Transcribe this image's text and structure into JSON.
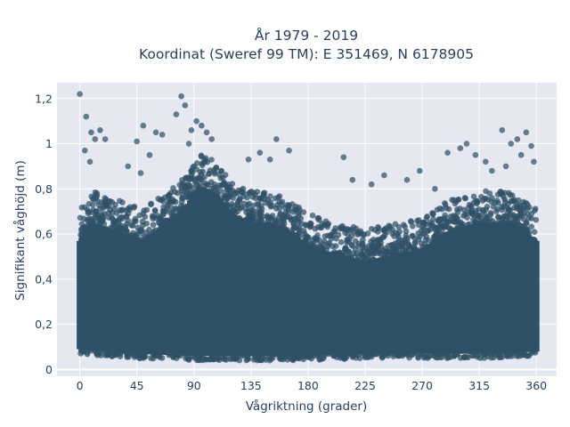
{
  "chart_data": {
    "type": "scatter",
    "title": "År 1979 - 2019",
    "subtitle": "Koordinat (Sweref 99 TM): E 351469, N 6178905",
    "xlabel": "Vågriktning (grader)",
    "ylabel": "Signifikant våghöjd (m)",
    "xlim": [
      -18,
      376
    ],
    "ylim": [
      -0.03,
      1.27
    ],
    "x_ticks": [
      0,
      45,
      90,
      135,
      180,
      225,
      270,
      315,
      360
    ],
    "x_tick_labels": [
      "0",
      "45",
      "90",
      "135",
      "180",
      "225",
      "270",
      "315",
      "360"
    ],
    "y_ticks": [
      0,
      0.2,
      0.4,
      0.6,
      0.8,
      1.0,
      1.2
    ],
    "y_tick_labels": [
      "0",
      "0,2",
      "0,4",
      "0,6",
      "0,8",
      "1",
      "1,2"
    ],
    "grid": true,
    "marker_color": "#2f5166",
    "background_color": "#e5e8f1",
    "series": [
      {
        "dense_band": {
          "x_range": [
            0,
            360
          ],
          "y_lower_bound": [
            [
              0,
              0.07
            ],
            [
              20,
              0.06
            ],
            [
              45,
              0.05
            ],
            [
              90,
              0.04
            ],
            [
              135,
              0.04
            ],
            [
              180,
              0.04
            ],
            [
              225,
              0.05
            ],
            [
              270,
              0.05
            ],
            [
              315,
              0.05
            ],
            [
              360,
              0.06
            ]
          ],
          "y_upper_bound": [
            [
              0,
              0.62
            ],
            [
              10,
              0.7
            ],
            [
              30,
              0.66
            ],
            [
              50,
              0.62
            ],
            [
              70,
              0.7
            ],
            [
              85,
              0.78
            ],
            [
              95,
              0.86
            ],
            [
              105,
              0.84
            ],
            [
              120,
              0.74
            ],
            [
              135,
              0.7
            ],
            [
              150,
              0.7
            ],
            [
              165,
              0.66
            ],
            [
              180,
              0.6
            ],
            [
              200,
              0.56
            ],
            [
              225,
              0.53
            ],
            [
              250,
              0.56
            ],
            [
              270,
              0.58
            ],
            [
              290,
              0.66
            ],
            [
              315,
              0.7
            ],
            [
              340,
              0.7
            ],
            [
              360,
              0.62
            ]
          ]
        },
        "points": [
          [
            0,
            1.22
          ],
          [
            5,
            1.12
          ],
          [
            9,
            1.05
          ],
          [
            12,
            1.02
          ],
          [
            16,
            1.06
          ],
          [
            20,
            1.02
          ],
          [
            4,
            0.97
          ],
          [
            8,
            0.92
          ],
          [
            45,
            1.01
          ],
          [
            50,
            1.08
          ],
          [
            55,
            0.95
          ],
          [
            60,
            1.05
          ],
          [
            65,
            1.04
          ],
          [
            38,
            0.9
          ],
          [
            48,
            0.87
          ],
          [
            80,
            1.21
          ],
          [
            83,
            1.17
          ],
          [
            76,
            1.13
          ],
          [
            88,
            1.06
          ],
          [
            92,
            1.1
          ],
          [
            96,
            1.08
          ],
          [
            100,
            1.05
          ],
          [
            104,
            1.02
          ],
          [
            86,
            1.0
          ],
          [
            155,
            1.02
          ],
          [
            165,
            0.97
          ],
          [
            150,
            0.93
          ],
          [
            142,
            0.96
          ],
          [
            133,
            0.93
          ],
          [
            208,
            0.94
          ],
          [
            215,
            0.84
          ],
          [
            230,
            0.82
          ],
          [
            240,
            0.86
          ],
          [
            258,
            0.84
          ],
          [
            268,
            0.88
          ],
          [
            280,
            0.8
          ],
          [
            290,
            0.96
          ],
          [
            300,
            0.98
          ],
          [
            305,
            1.0
          ],
          [
            312,
            0.95
          ],
          [
            320,
            0.92
          ],
          [
            325,
            0.88
          ],
          [
            333,
            1.06
          ],
          [
            340,
            1.0
          ],
          [
            345,
            1.02
          ],
          [
            352,
            1.05
          ],
          [
            356,
            0.99
          ],
          [
            358,
            0.92
          ],
          [
            348,
            0.95
          ],
          [
            336,
            0.9
          ]
        ]
      }
    ]
  }
}
